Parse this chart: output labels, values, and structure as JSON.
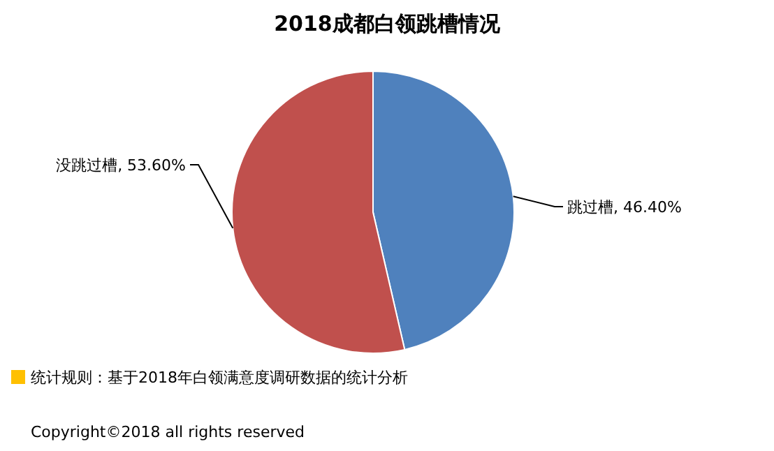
{
  "chart_data": {
    "type": "pie",
    "title": "2018成都白领跳槽情况",
    "categories": [
      "跳过槽",
      "没跳过槽"
    ],
    "values": [
      46.4,
      53.6
    ],
    "value_labels": [
      "46.40%",
      "53.60%"
    ],
    "colors": [
      "#4f81bd",
      "#c0504d"
    ],
    "annotations": [
      "统计规则：基于2018年白领满意度调研数据的统计分析",
      "Copyright©2018 all rights reserved"
    ]
  }
}
